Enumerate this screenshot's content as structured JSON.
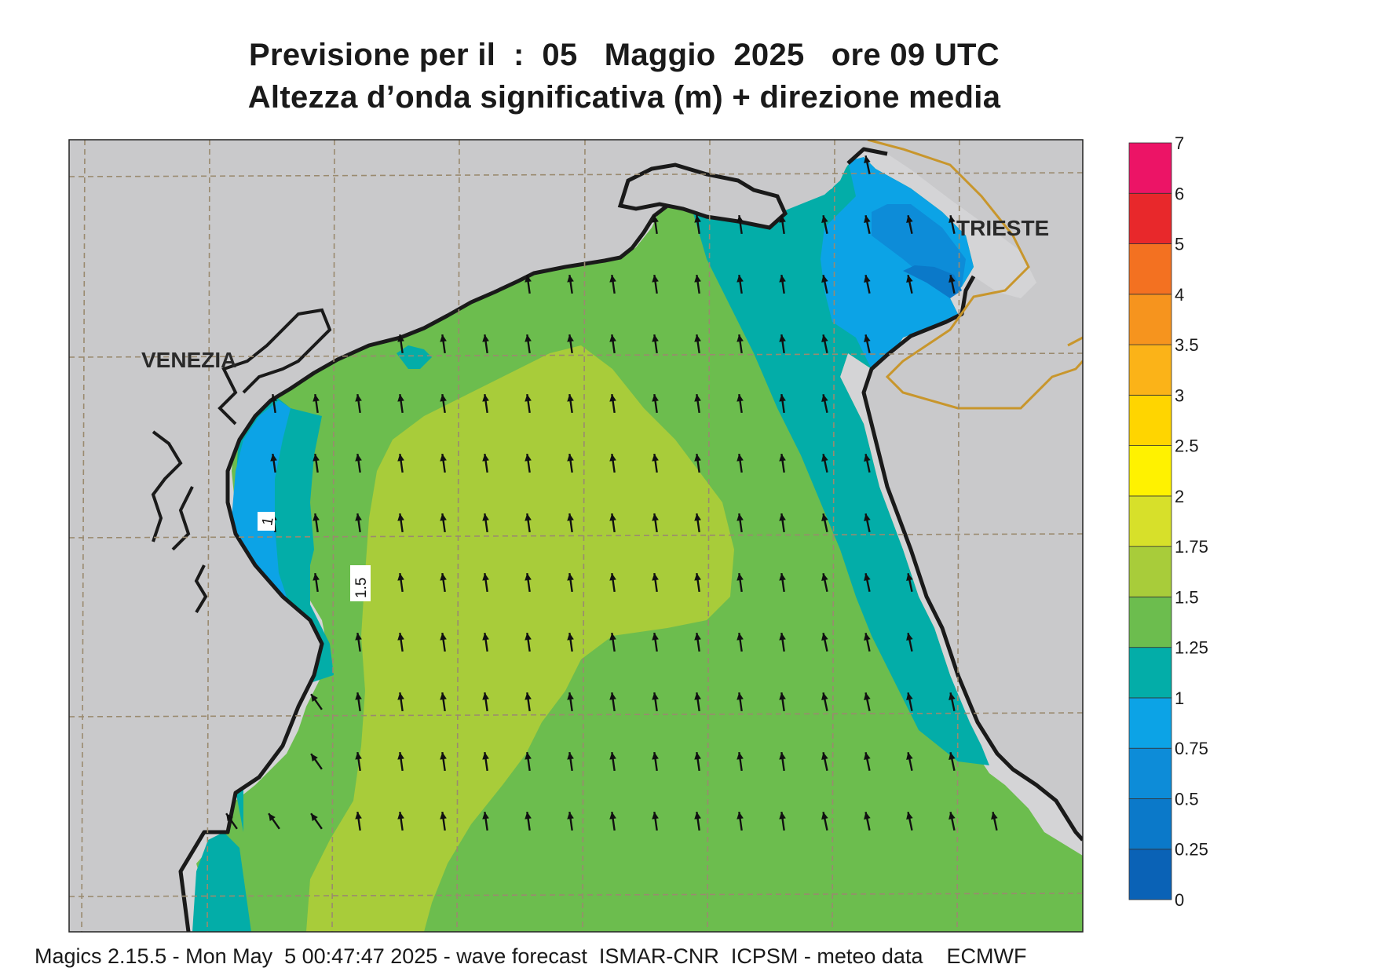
{
  "title": {
    "line1": "Previsione per il  :  05   Maggio  2025   ore 09 UTC",
    "line2": "Altezza d’onda significativa (m) + direzione media"
  },
  "cities": {
    "venezia": "VENEZIA",
    "trieste": "TRIESTE"
  },
  "contour_labels": [
    "1",
    "1.5"
  ],
  "legend": {
    "ticks": [
      "0",
      "0.25",
      "0.5",
      "0.75",
      "1",
      "1.25",
      "1.5",
      "1.75",
      "2",
      "2.5",
      "3",
      "3.5",
      "4",
      "5",
      "6",
      "7"
    ],
    "colors": [
      "#0a62b6",
      "#0b79c9",
      "#0d8cd8",
      "#0ca3e6",
      "#03ada8",
      "#6cbd4e",
      "#a8cc3a",
      "#d7e02a",
      "#fff200",
      "#ffd500",
      "#fbb318",
      "#f6941e",
      "#f37121",
      "#e8282b",
      "#ec1466"
    ]
  },
  "footer": "Magics 2.15.5 - Mon May  5 00:47:47 2025 - wave forecast  ISMAR-CNR  ICPSM - meteo data    ECMWF"
}
